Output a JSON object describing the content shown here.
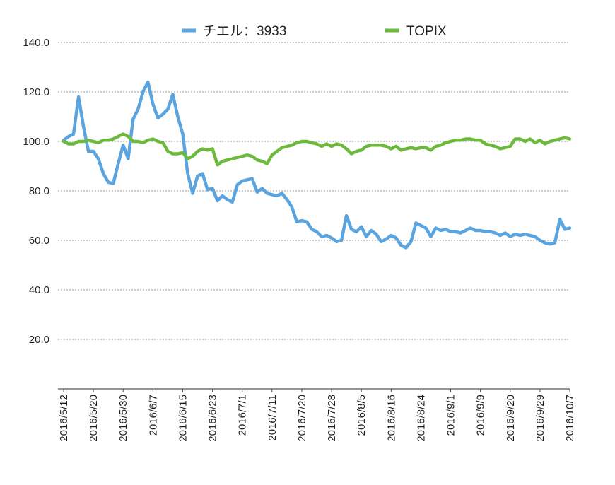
{
  "chart_data": {
    "type": "line",
    "title": "",
    "xlabel": "",
    "ylabel": "",
    "ylim": [
      0,
      140
    ],
    "yticks": [
      20,
      40,
      60,
      80,
      100,
      120,
      140
    ],
    "ytick_labels": [
      "20.0",
      "40.0",
      "60.0",
      "80.0",
      "100.0",
      "120.0",
      "140.0"
    ],
    "xtick_labels": [
      "2016/5/12",
      "2016/5/20",
      "2016/5/30",
      "2016/6/7",
      "2016/6/15",
      "2016/6/23",
      "2016/7/1",
      "2016/7/11",
      "2016/7/20",
      "2016/7/28",
      "2016/8/5",
      "2016/8/16",
      "2016/8/24",
      "2016/9/1",
      "2016/9/9",
      "2016/9/20",
      "2016/9/29",
      "2016/10/7"
    ],
    "legend_position": "top",
    "grid": true,
    "series": [
      {
        "name": "チエル：3933",
        "color": "#5aa4e0",
        "values": [
          100.5,
          102,
          103,
          118,
          106,
          96,
          96,
          93,
          87,
          83.5,
          83,
          91,
          98.5,
          93,
          109,
          113,
          120,
          124,
          115,
          109.5,
          111,
          113,
          119,
          110,
          103,
          87,
          79,
          86,
          87,
          80.5,
          81,
          76,
          78,
          76.5,
          75.5,
          82.5,
          84,
          84.5,
          85,
          79.5,
          81,
          79,
          78.5,
          78,
          79,
          76.5,
          73.5,
          67.5,
          68,
          67.5,
          64.5,
          63.5,
          61.5,
          62,
          61,
          59.5,
          60,
          70,
          64.5,
          63.5,
          65.5,
          61.5,
          64,
          62.5,
          59.5,
          60.5,
          62,
          61,
          58,
          57,
          59.5,
          67,
          66,
          65,
          61.5,
          65,
          64,
          64.5,
          63.5,
          63.5,
          63,
          64,
          65,
          64,
          64,
          63.5,
          63.5,
          63,
          62,
          63,
          61.5,
          62.5,
          62,
          62.5,
          62,
          61.5,
          60,
          59,
          58.5,
          59,
          68.5,
          64.5,
          65
        ]
      },
      {
        "name": "TOPIX",
        "color": "#6cba3c",
        "values": [
          100,
          99,
          99,
          100,
          100,
          100.5,
          100,
          99.5,
          100.5,
          100.5,
          101,
          102,
          103,
          102,
          100,
          100,
          99.5,
          100.5,
          101,
          100,
          99.5,
          96,
          95,
          95,
          95.5,
          93,
          94,
          96,
          97,
          96.5,
          97,
          90.5,
          92,
          92.5,
          93,
          93.5,
          94,
          94.5,
          94,
          92.5,
          92,
          91,
          94.5,
          96,
          97.5,
          98,
          98.5,
          99.5,
          100,
          100,
          99.5,
          99,
          98,
          99,
          98,
          99,
          98.5,
          97,
          95,
          96,
          96.5,
          98,
          98.5,
          98.5,
          98.5,
          98,
          97,
          98,
          96.5,
          97,
          97.5,
          97,
          97.5,
          97.5,
          96.5,
          98,
          98.5,
          99.5,
          100,
          100.5,
          100.5,
          101,
          101,
          100.5,
          100.5,
          99,
          98.5,
          98,
          97,
          97.5,
          98,
          101,
          101,
          100,
          101,
          99.5,
          100.5,
          99,
          100,
          100.5,
          101,
          101.5,
          101
        ]
      }
    ]
  }
}
